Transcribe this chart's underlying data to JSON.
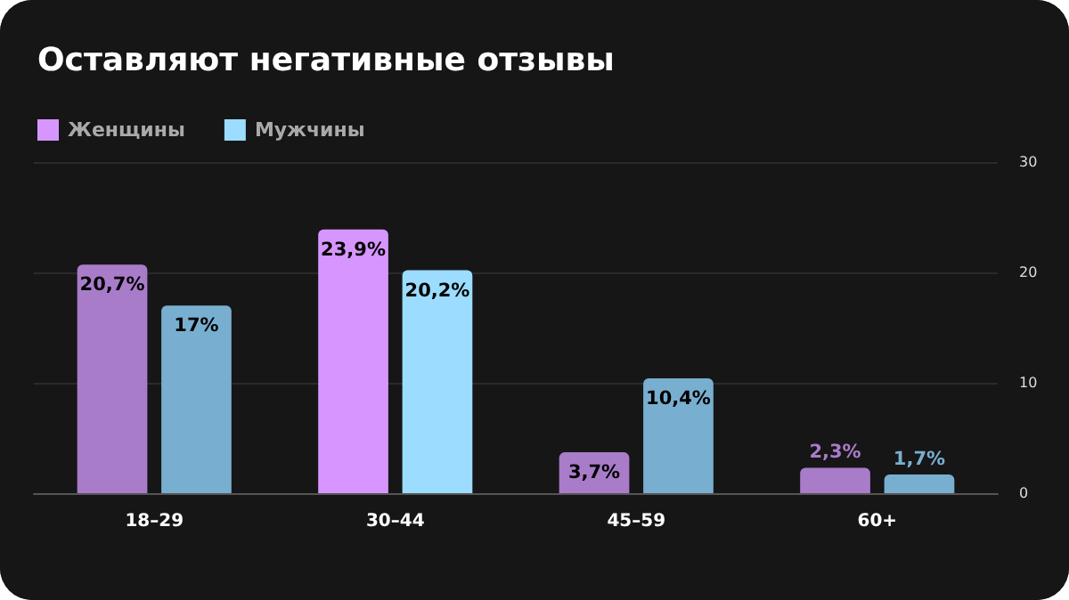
{
  "chart_data": {
    "type": "bar",
    "title": "Оставляют негативные отзывы",
    "categories": [
      "18–29",
      "30–44",
      "45–59",
      "60+"
    ],
    "series": [
      {
        "name": "Женщины",
        "color": "#d796ff",
        "colors": [
          "#a97cca",
          "#d796ff",
          "#a97cca",
          "#a97cca"
        ],
        "values": [
          20.7,
          23.9,
          3.7,
          2.3
        ],
        "value_labels": [
          "20,7%",
          "23,9%",
          "3,7%",
          "2,3%"
        ]
      },
      {
        "name": "Мужчины",
        "color": "#9bdcff",
        "colors": [
          "#78afd0",
          "#9bdcff",
          "#78afd0",
          "#78afd0"
        ],
        "values": [
          17,
          20.2,
          10.4,
          1.7
        ],
        "value_labels": [
          "17%",
          "20,2%",
          "10,4%",
          "1,7%"
        ]
      }
    ],
    "ylim": [
      0,
      30
    ],
    "yticks": [
      0,
      10,
      20,
      30
    ],
    "grid": "y",
    "legend": "top left"
  }
}
